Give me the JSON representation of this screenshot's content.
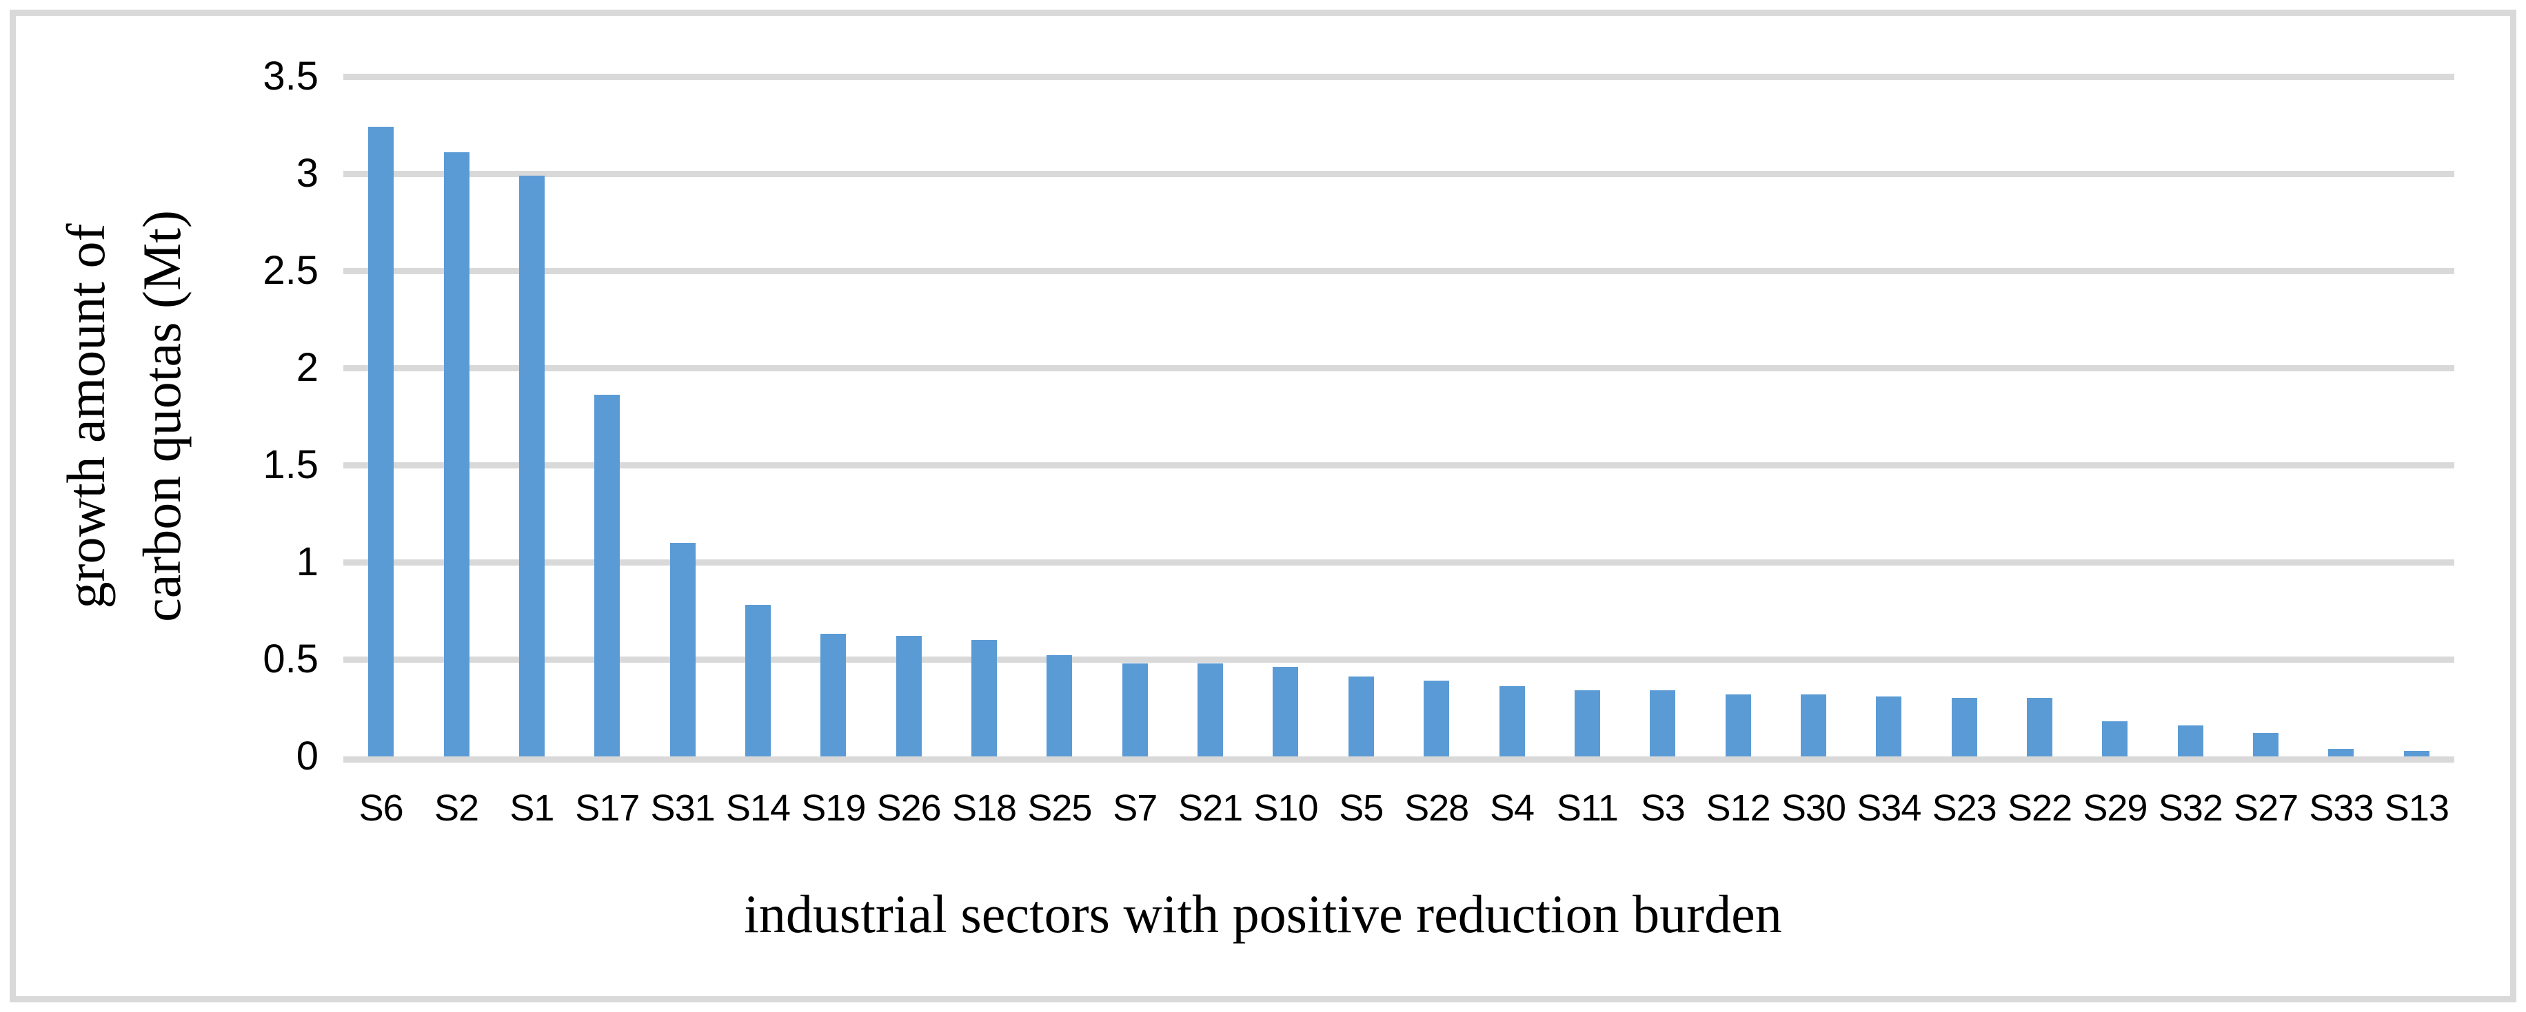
{
  "figure": {
    "background_color": "#ffffff",
    "frame_color": "#d9d9d9"
  },
  "chart_data": {
    "type": "bar",
    "title": "",
    "xlabel": "industrial sectors with positive reduction burden",
    "ylabel": "growth amount of carbon quotas (Mt)",
    "ylabel_lines": [
      "growth amount of",
      "carbon quotas (Mt)"
    ],
    "categories": [
      "S6",
      "S2",
      "S1",
      "S17",
      "S31",
      "S14",
      "S19",
      "S26",
      "S18",
      "S25",
      "S7",
      "S21",
      "S10",
      "S5",
      "S28",
      "S4",
      "S11",
      "S3",
      "S12",
      "S30",
      "S34",
      "S23",
      "S22",
      "S29",
      "S32",
      "S27",
      "S33",
      "S13"
    ],
    "values": [
      3.24,
      3.11,
      2.99,
      1.86,
      1.1,
      0.78,
      0.63,
      0.62,
      0.6,
      0.52,
      0.48,
      0.48,
      0.46,
      0.41,
      0.39,
      0.36,
      0.34,
      0.34,
      0.32,
      0.32,
      0.31,
      0.3,
      0.3,
      0.18,
      0.16,
      0.12,
      0.04,
      0.03
    ],
    "ylim": [
      0,
      3.5
    ],
    "y_tick_values": [
      3.5,
      3,
      2.5,
      2,
      1.5,
      1,
      0.5,
      0
    ],
    "y_tick_labels": [
      "3.5",
      "3",
      "2.5",
      "2",
      "1.5",
      "1",
      "0.5",
      "0"
    ],
    "grid": "horizontal",
    "legend_position": "none",
    "bar_color": "#5b9bd5",
    "gridline_color": "#d9d9d9",
    "text_color": "#000000"
  }
}
